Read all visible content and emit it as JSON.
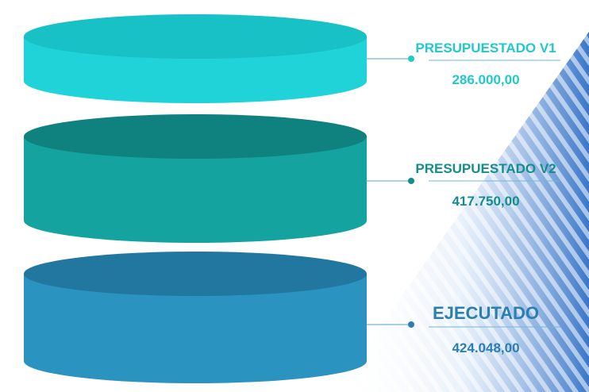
{
  "chart_data": {
    "type": "bar",
    "categories": [
      "PRESUPUESTADO V1",
      "PRESUPUESTADO V2",
      "EJECUTADO"
    ],
    "values": [
      286000.0,
      417750.0,
      424048.0
    ],
    "value_labels": [
      "286.000,00",
      "417.750,00",
      "424.048,00"
    ],
    "title": "",
    "xlabel": "",
    "ylabel": "",
    "legend": "none",
    "grid": false
  },
  "colors": {
    "tier1_side": "#1fd3d8",
    "tier1_top": "#17c1c6",
    "tier1_text": "#22c8cc",
    "tier2_side": "#14a39f",
    "tier2_top": "#0f817f",
    "tier2_text": "#138e8b",
    "tier3_side": "#2b93c0",
    "tier3_top": "#2177a0",
    "tier3_text": "#2a7fb0",
    "line": "#6fb8d4",
    "bg_stripes": "#3d7ccf"
  }
}
